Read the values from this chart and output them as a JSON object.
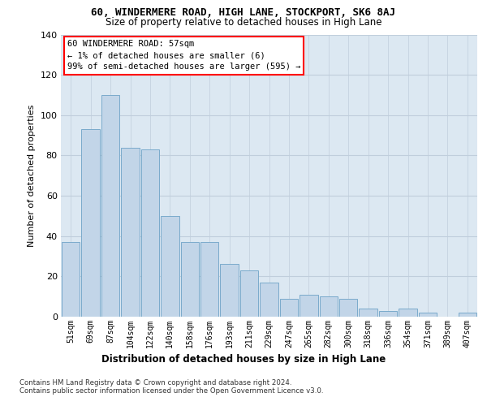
{
  "title": "60, WINDERMERE ROAD, HIGH LANE, STOCKPORT, SK6 8AJ",
  "subtitle": "Size of property relative to detached houses in High Lane",
  "xlabel": "Distribution of detached houses by size in High Lane",
  "ylabel": "Number of detached properties",
  "categories": [
    "51sqm",
    "69sqm",
    "87sqm",
    "104sqm",
    "122sqm",
    "140sqm",
    "158sqm",
    "176sqm",
    "193sqm",
    "211sqm",
    "229sqm",
    "247sqm",
    "265sqm",
    "282sqm",
    "300sqm",
    "318sqm",
    "336sqm",
    "354sqm",
    "371sqm",
    "389sqm",
    "407sqm"
  ],
  "values": [
    37,
    93,
    110,
    84,
    83,
    50,
    37,
    37,
    26,
    23,
    17,
    9,
    11,
    10,
    9,
    4,
    3,
    4,
    2,
    0,
    2
  ],
  "bar_color": "#c2d5e8",
  "bar_edge_color": "#7aaacb",
  "annotation_text": "60 WINDERMERE ROAD: 57sqm\n← 1% of detached houses are smaller (6)\n99% of semi-detached houses are larger (595) →",
  "annotation_box_facecolor": "white",
  "annotation_box_edgecolor": "red",
  "ylim": [
    0,
    140
  ],
  "yticks": [
    0,
    20,
    40,
    60,
    80,
    100,
    120,
    140
  ],
  "plot_bg_color": "#dce8f2",
  "grid_color": "#c0cedc",
  "footer_line1": "Contains HM Land Registry data © Crown copyright and database right 2024.",
  "footer_line2": "Contains public sector information licensed under the Open Government Licence v3.0."
}
